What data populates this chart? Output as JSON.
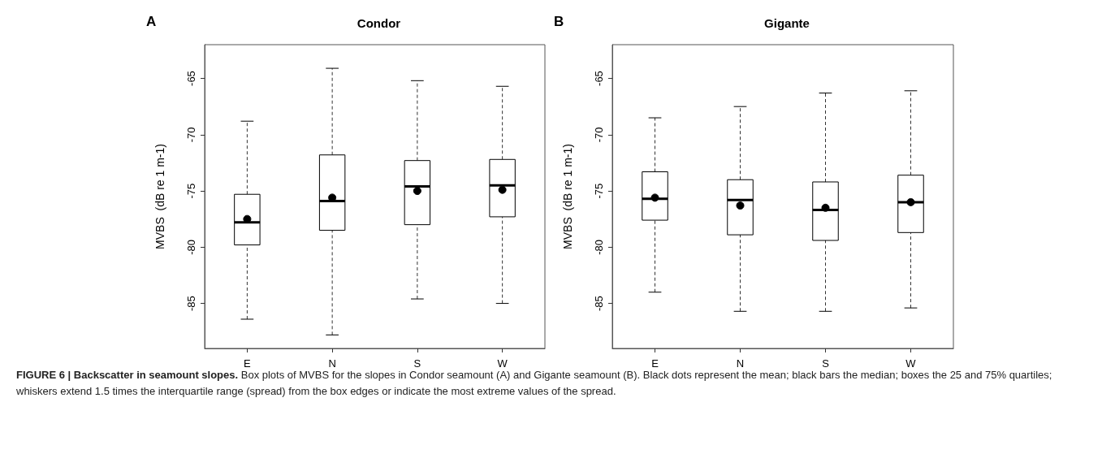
{
  "chart_data": [
    {
      "type": "box",
      "title": "Condor",
      "ylabel": "MVBS  (dB re 1 m-1)",
      "categories": [
        "E",
        "N",
        "S",
        "W"
      ],
      "boxes": [
        {
          "low": -86.4,
          "q1": -79.8,
          "median": -77.8,
          "q3": -75.3,
          "high": -68.8,
          "mean": -77.5
        },
        {
          "low": -87.8,
          "q1": -78.5,
          "median": -75.9,
          "q3": -71.8,
          "high": -64.1,
          "mean": -75.6
        },
        {
          "low": -84.6,
          "q1": -78.0,
          "median": -74.6,
          "q3": -72.3,
          "high": -65.2,
          "mean": -75.0
        },
        {
          "low": -85.0,
          "q1": -77.3,
          "median": -74.5,
          "q3": -72.2,
          "high": -65.7,
          "mean": -74.9
        }
      ],
      "ylim": [
        -89,
        -62
      ],
      "yticks": [
        -85,
        -80,
        -75,
        -70,
        -65
      ],
      "marker": "circle",
      "annotations": [
        "A",
        "FIGURE 6 | Backscatter in seamount slopes.",
        "Box plots of MVBS for the slopes in Condor seamount (A) and Gigante seamount (B). Black dots represent the mean; black bars the median; boxes the 25 and 75% quartiles; whiskers extend 1.5 times the interquartile range (spread) from the box edges or indicate the most extreme values of the spread."
      ]
    },
    {
      "type": "box",
      "title": "Gigante",
      "ylabel": "MVBS  (dB re 1 m-1)",
      "categories": [
        "E",
        "N",
        "S",
        "W"
      ],
      "boxes": [
        {
          "low": -84.0,
          "q1": -77.6,
          "median": -75.7,
          "q3": -73.3,
          "high": -68.5,
          "mean": -75.6
        },
        {
          "low": -85.7,
          "q1": -78.9,
          "median": -75.8,
          "q3": -74.0,
          "high": -67.5,
          "mean": -76.3
        },
        {
          "low": -85.7,
          "q1": -79.4,
          "median": -76.7,
          "q3": -74.2,
          "high": -66.3,
          "mean": -76.5
        },
        {
          "low": -85.4,
          "q1": -78.7,
          "median": -76.0,
          "q3": -73.6,
          "high": -66.1,
          "mean": -76.0
        }
      ],
      "ylim": [
        -89,
        -62
      ],
      "yticks": [
        -85,
        -80,
        -75,
        -70,
        -65
      ],
      "marker": "circle",
      "annotations": [
        "B"
      ]
    }
  ]
}
